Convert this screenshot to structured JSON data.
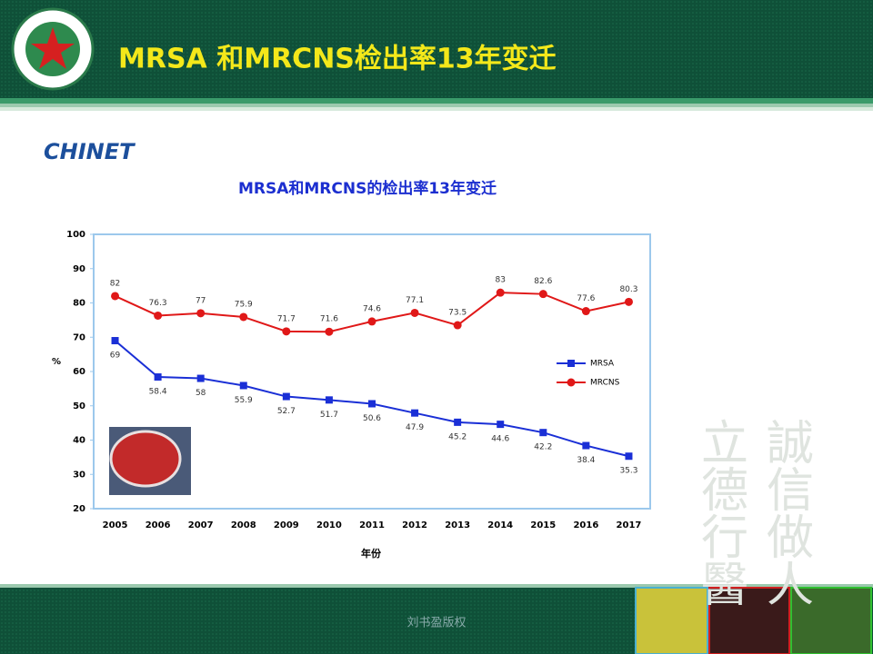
{
  "slide": {
    "title": "MRSA 和MRCNS检出率13年变迁",
    "logo": "CHINET",
    "calligraphy": [
      "誠信做人",
      "立德行醫"
    ],
    "footer": "刘书盈版权"
  },
  "chart_data": {
    "type": "line",
    "title": "MRSA和MRCNS的检出率13年变迁",
    "x_label": "年份",
    "y_label": "%",
    "categories": [
      "2005",
      "2006",
      "2007",
      "2008",
      "2009",
      "2010",
      "2011",
      "2012",
      "2013",
      "2014",
      "2015",
      "2016",
      "2017"
    ],
    "series": [
      {
        "name": "MRSA",
        "color": "#1a2fd6",
        "marker": "square",
        "values": [
          69,
          58.4,
          58,
          55.9,
          52.7,
          51.7,
          50.6,
          47.9,
          45.2,
          44.6,
          42.2,
          38.4,
          35.3
        ]
      },
      {
        "name": "MRCNS",
        "color": "#e01818",
        "marker": "circle",
        "values": [
          82,
          76.3,
          77,
          75.9,
          71.7,
          71.6,
          74.6,
          77.1,
          73.5,
          83,
          82.6,
          77.6,
          80.3
        ]
      }
    ],
    "ylim": [
      20,
      100
    ],
    "yticks": [
      20,
      30,
      40,
      50,
      60,
      70,
      80,
      90,
      100
    ],
    "grid": false,
    "legend": "right",
    "data_labels": true
  }
}
